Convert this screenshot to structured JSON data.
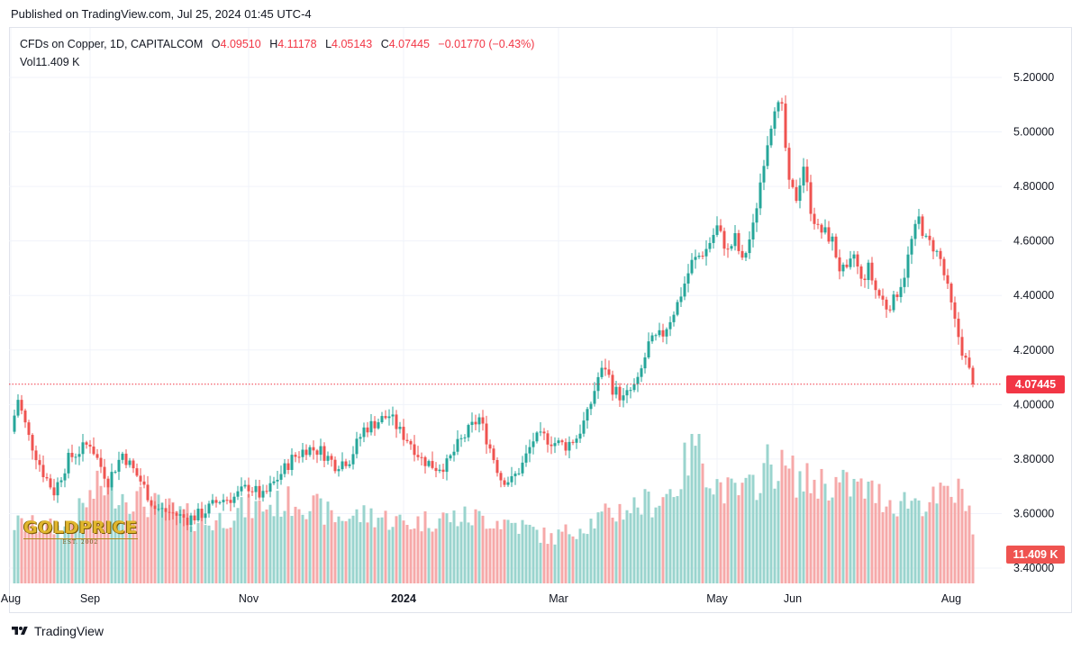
{
  "header": {
    "published": "Published on TradingView.com, Jul 25, 2024 01:45 UTC-4"
  },
  "legend": {
    "symbol": "CFDs on Copper, 1D, CAPITALCOM",
    "open_label": "O",
    "open": "4.09510",
    "high_label": "H",
    "high": "4.11178",
    "low_label": "L",
    "low": "4.05143",
    "close_label": "C",
    "close": "4.07445",
    "change": "−0.01770 (−0.43%)",
    "vol_label": "Vol",
    "vol": "11.409 K"
  },
  "footer": {
    "brand": "TradingView"
  },
  "watermark": {
    "text": "GOLDPRICE",
    "sub": "EST. 2002"
  },
  "colors": {
    "up": "#26a69a",
    "down": "#ef5350",
    "up_vol": "#9ad4ce",
    "down_vol": "#f6a9a9",
    "last": "#f23645"
  },
  "chart_data": {
    "type": "candlestick",
    "y_ticks": [
      "5.20000",
      "5.00000",
      "4.80000",
      "4.60000",
      "4.40000",
      "4.20000",
      "4.00000",
      "3.80000",
      "3.60000",
      "3.40000"
    ],
    "ylim": [
      3.4,
      5.2
    ],
    "x_labels": [
      {
        "label": "Aug",
        "bar": 0
      },
      {
        "label": "Sep",
        "bar": 22
      },
      {
        "label": "Nov",
        "bar": 66
      },
      {
        "label": "2024",
        "bar": 109
      },
      {
        "label": "Mar",
        "bar": 152
      },
      {
        "label": "May",
        "bar": 196
      },
      {
        "label": "Jun",
        "bar": 217
      },
      {
        "label": "Aug",
        "bar": 261
      }
    ],
    "last_price": 4.07445,
    "last_price_label": "4.07445",
    "last_volume_label": "11.409 K",
    "max_volume": 50,
    "anchors": [
      [
        0,
        3.9
      ],
      [
        2,
        4.02
      ],
      [
        5,
        3.88
      ],
      [
        9,
        3.75
      ],
      [
        12,
        3.68
      ],
      [
        16,
        3.8
      ],
      [
        22,
        3.86
      ],
      [
        24,
        3.8
      ],
      [
        27,
        3.72
      ],
      [
        31,
        3.82
      ],
      [
        36,
        3.72
      ],
      [
        40,
        3.62
      ],
      [
        45,
        3.6
      ],
      [
        49,
        3.58
      ],
      [
        53,
        3.6
      ],
      [
        58,
        3.65
      ],
      [
        62,
        3.66
      ],
      [
        66,
        3.7
      ],
      [
        70,
        3.66
      ],
      [
        74,
        3.73
      ],
      [
        78,
        3.8
      ],
      [
        82,
        3.84
      ],
      [
        86,
        3.83
      ],
      [
        90,
        3.78
      ],
      [
        94,
        3.8
      ],
      [
        98,
        3.91
      ],
      [
        102,
        3.94
      ],
      [
        105,
        3.96
      ],
      [
        108,
        3.9
      ],
      [
        111,
        3.86
      ],
      [
        114,
        3.8
      ],
      [
        118,
        3.77
      ],
      [
        121,
        3.78
      ],
      [
        124,
        3.85
      ],
      [
        128,
        3.92
      ],
      [
        130,
        3.95
      ],
      [
        133,
        3.84
      ],
      [
        136,
        3.73
      ],
      [
        139,
        3.72
      ],
      [
        142,
        3.78
      ],
      [
        145,
        3.87
      ],
      [
        148,
        3.88
      ],
      [
        151,
        3.86
      ],
      [
        154,
        3.85
      ],
      [
        157,
        3.88
      ],
      [
        160,
        3.96
      ],
      [
        163,
        4.1
      ],
      [
        165,
        4.14
      ],
      [
        167,
        4.06
      ],
      [
        170,
        4.02
      ],
      [
        174,
        4.08
      ],
      [
        177,
        4.22
      ],
      [
        181,
        4.26
      ],
      [
        185,
        4.37
      ],
      [
        189,
        4.52
      ],
      [
        193,
        4.57
      ],
      [
        196,
        4.65
      ],
      [
        199,
        4.56
      ],
      [
        201,
        4.61
      ],
      [
        203,
        4.52
      ],
      [
        206,
        4.65
      ],
      [
        209,
        4.9
      ],
      [
        212,
        5.1
      ],
      [
        214,
        5.08
      ],
      [
        216,
        4.8
      ],
      [
        218,
        4.76
      ],
      [
        220,
        4.88
      ],
      [
        222,
        4.72
      ],
      [
        224,
        4.64
      ],
      [
        226,
        4.63
      ],
      [
        228,
        4.6
      ],
      [
        230,
        4.5
      ],
      [
        232,
        4.48
      ],
      [
        234,
        4.55
      ],
      [
        236,
        4.45
      ],
      [
        238,
        4.5
      ],
      [
        240,
        4.42
      ],
      [
        243,
        4.36
      ],
      [
        245,
        4.38
      ],
      [
        248,
        4.48
      ],
      [
        250,
        4.6
      ],
      [
        252,
        4.68
      ],
      [
        254,
        4.6
      ],
      [
        256,
        4.58
      ],
      [
        258,
        4.53
      ],
      [
        260,
        4.42
      ],
      [
        262,
        4.3
      ],
      [
        264,
        4.2
      ],
      [
        266,
        4.12
      ],
      [
        267,
        4.07445
      ]
    ],
    "volume_anchors": [
      [
        0,
        20
      ],
      [
        15,
        18
      ],
      [
        25,
        33
      ],
      [
        35,
        28
      ],
      [
        45,
        24
      ],
      [
        55,
        20
      ],
      [
        65,
        25
      ],
      [
        72,
        26
      ],
      [
        80,
        28
      ],
      [
        90,
        22
      ],
      [
        100,
        23
      ],
      [
        110,
        20
      ],
      [
        120,
        22
      ],
      [
        130,
        22
      ],
      [
        140,
        20
      ],
      [
        150,
        15
      ],
      [
        160,
        20
      ],
      [
        170,
        25
      ],
      [
        180,
        28
      ],
      [
        185,
        33
      ],
      [
        190,
        49
      ],
      [
        195,
        34
      ],
      [
        200,
        30
      ],
      [
        205,
        31
      ],
      [
        210,
        40
      ],
      [
        215,
        38
      ],
      [
        220,
        34
      ],
      [
        225,
        34
      ],
      [
        230,
        33
      ],
      [
        235,
        32
      ],
      [
        240,
        30
      ],
      [
        245,
        27
      ],
      [
        250,
        28
      ],
      [
        255,
        27
      ],
      [
        260,
        30
      ],
      [
        265,
        30
      ],
      [
        268,
        14
      ]
    ]
  }
}
